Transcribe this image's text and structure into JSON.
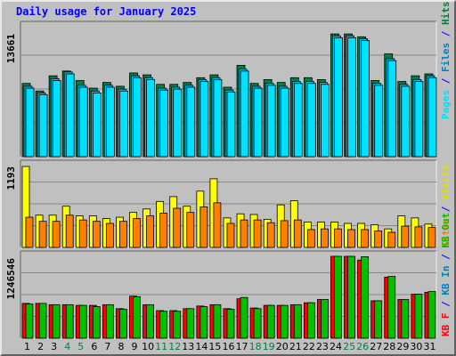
{
  "chart_data": [
    {
      "type": "bar",
      "title": "Daily usage for January 2025",
      "ymax_label": "13661",
      "ylim": [
        0,
        13661
      ],
      "categories": [
        "1",
        "2",
        "3",
        "4",
        "5",
        "6",
        "7",
        "8",
        "9",
        "10",
        "11",
        "12",
        "13",
        "14",
        "15",
        "16",
        "17",
        "18",
        "19",
        "20",
        "21",
        "22",
        "23",
        "24",
        "25",
        "26",
        "27",
        "28",
        "29",
        "30",
        "31"
      ],
      "weekend_days": [
        "4",
        "5",
        "11",
        "12",
        "18",
        "19",
        "25",
        "26"
      ],
      "legend": [
        "Hits",
        "Files",
        "Pages"
      ],
      "series": [
        {
          "name": "Hits",
          "color": "#008040",
          "values": [
            7700,
            6900,
            8500,
            9000,
            8000,
            7200,
            7800,
            7400,
            8800,
            8600,
            7600,
            7600,
            7800,
            8300,
            8600,
            7300,
            9600,
            7700,
            8100,
            7800,
            8300,
            8300,
            8100,
            12900,
            12900,
            12600,
            8000,
            10800,
            7900,
            8500,
            8700
          ]
        },
        {
          "name": "Files",
          "color": "#00c0ff",
          "values": [
            7400,
            6700,
            8200,
            8900,
            7500,
            6900,
            7500,
            7100,
            8500,
            8300,
            7200,
            7300,
            7500,
            8100,
            8300,
            7000,
            9200,
            7400,
            7700,
            7400,
            7900,
            7900,
            7800,
            12700,
            12700,
            12400,
            7700,
            10300,
            7600,
            8100,
            8500
          ]
        },
        {
          "name": "Pages",
          "color": "#00e0ff",
          "values": [
            7200,
            6500,
            8000,
            8700,
            7300,
            6700,
            7300,
            6900,
            8300,
            8100,
            7000,
            7100,
            7300,
            7900,
            8100,
            6800,
            9000,
            7200,
            7500,
            7200,
            7700,
            7700,
            7600,
            12500,
            12500,
            12200,
            7500,
            10100,
            7400,
            7900,
            8300
          ]
        }
      ]
    },
    {
      "type": "bar",
      "ymax_label": "1193",
      "ylim": [
        0,
        1193
      ],
      "legend": [
        "Visits",
        "Sites"
      ],
      "series": [
        {
          "name": "Visits",
          "color": "#ffff00",
          "values": [
            1180,
            470,
            470,
            600,
            460,
            460,
            420,
            440,
            510,
            560,
            670,
            740,
            600,
            820,
            1000,
            430,
            490,
            480,
            410,
            620,
            680,
            370,
            370,
            370,
            350,
            350,
            330,
            270,
            460,
            430,
            340
          ]
        },
        {
          "name": "Sites",
          "color": "#ff8000",
          "values": [
            440,
            380,
            380,
            470,
            400,
            380,
            350,
            380,
            420,
            460,
            500,
            570,
            510,
            590,
            650,
            350,
            400,
            400,
            360,
            390,
            400,
            260,
            270,
            270,
            260,
            260,
            240,
            220,
            310,
            300,
            290
          ]
        }
      ]
    },
    {
      "type": "bar",
      "ymax_label": "1246546",
      "ylim": [
        0,
        1246546
      ],
      "legend": [
        "KB F",
        "KB In",
        "KB Out"
      ],
      "series": [
        {
          "name": "KB F",
          "color": "#ff0000",
          "values": [
            530000,
            530000,
            510000,
            510000,
            500000,
            500000,
            510000,
            450000,
            640000,
            510000,
            420000,
            420000,
            450000,
            490000,
            510000,
            450000,
            600000,
            460000,
            500000,
            500000,
            510000,
            540000,
            590000,
            1246546,
            1246546,
            1190000,
            570000,
            930000,
            590000,
            670000,
            700000
          ]
        },
        {
          "name": "KB In",
          "color": "#0080c0",
          "values": [
            0,
            0,
            0,
            0,
            0,
            0,
            0,
            0,
            0,
            0,
            0,
            0,
            0,
            0,
            0,
            0,
            0,
            0,
            0,
            0,
            0,
            0,
            0,
            0,
            0,
            0,
            0,
            0,
            0,
            0,
            0
          ]
        },
        {
          "name": "KB Out",
          "color": "#00c000",
          "values": [
            520000,
            530000,
            510000,
            510000,
            500000,
            480000,
            510000,
            440000,
            630000,
            510000,
            410000,
            410000,
            450000,
            480000,
            510000,
            440000,
            620000,
            450000,
            500000,
            500000,
            510000,
            540000,
            590000,
            1246546,
            1246546,
            1240000,
            570000,
            940000,
            590000,
            670000,
            710000
          ]
        }
      ]
    }
  ]
}
